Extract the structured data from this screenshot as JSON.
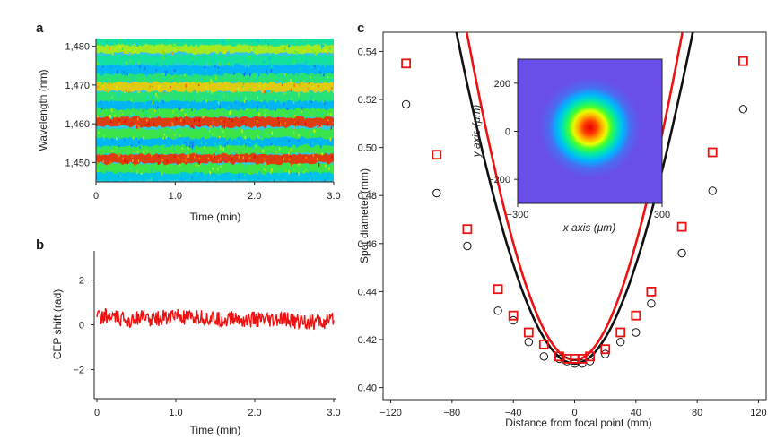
{
  "chart_data": [
    {
      "id": "a",
      "panel_letter": "a",
      "type": "heatmap",
      "xlabel": "Time (min)",
      "ylabel": "Wavelength (nm)",
      "xlim": [
        0,
        3.0
      ],
      "ylim": [
        1445,
        1482
      ],
      "xticks": [
        "0",
        "1.0",
        "2.0",
        "3.0"
      ],
      "xtick_values": [
        0,
        1.0,
        2.0,
        3.0
      ],
      "yticks": [
        "1,450",
        "1,460",
        "1,470",
        "1,480"
      ],
      "ytick_values": [
        1450,
        1460,
        1470,
        1480
      ],
      "bands": [
        {
          "wavelength": 1446.5,
          "intensity": 0.3
        },
        {
          "wavelength": 1448.5,
          "intensity": 0.55
        },
        {
          "wavelength": 1451.0,
          "intensity": 0.95
        },
        {
          "wavelength": 1453.5,
          "intensity": 0.55
        },
        {
          "wavelength": 1455.5,
          "intensity": 0.25
        },
        {
          "wavelength": 1457.5,
          "intensity": 0.55
        },
        {
          "wavelength": 1460.5,
          "intensity": 0.95
        },
        {
          "wavelength": 1463.0,
          "intensity": 0.55
        },
        {
          "wavelength": 1465.0,
          "intensity": 0.25
        },
        {
          "wavelength": 1467.0,
          "intensity": 0.5
        },
        {
          "wavelength": 1469.5,
          "intensity": 0.75
        },
        {
          "wavelength": 1472.0,
          "intensity": 0.5
        },
        {
          "wavelength": 1474.0,
          "intensity": 0.25
        },
        {
          "wavelength": 1476.5,
          "intensity": 0.45
        },
        {
          "wavelength": 1479.5,
          "intensity": 0.65
        },
        {
          "wavelength": 1481.5,
          "intensity": 0.45
        }
      ]
    },
    {
      "id": "b",
      "panel_letter": "b",
      "type": "line",
      "xlabel": "Time (min)",
      "ylabel": "CEP shift (rad)",
      "xlim": [
        0,
        3.0
      ],
      "ylim": [
        -3.3,
        3.3
      ],
      "xticks": [
        "0",
        "1.0",
        "2.0",
        "3.0"
      ],
      "xtick_values": [
        0,
        1.0,
        2.0,
        3.0
      ],
      "yticks": [
        "2",
        "0",
        "−2"
      ],
      "ytick_values": [
        2,
        0,
        -2
      ],
      "color": "#ee1111",
      "series": [
        {
          "name": "CEP shift",
          "x": [
            0,
            0.1,
            0.2,
            0.3,
            0.4,
            0.5,
            0.6,
            0.7,
            0.8,
            0.9,
            1.0,
            1.1,
            1.2,
            1.3,
            1.4,
            1.5,
            1.6,
            1.7,
            1.8,
            1.9,
            2.0,
            2.1,
            2.2,
            2.3,
            2.4,
            2.5,
            2.6,
            2.7,
            2.8,
            2.9,
            3.0
          ],
          "values": [
            0.35,
            0.4,
            0.3,
            0.25,
            0.2,
            0.35,
            0.3,
            0.25,
            0.3,
            0.35,
            0.4,
            0.3,
            0.25,
            0.35,
            0.3,
            0.25,
            0.2,
            0.3,
            0.25,
            0.2,
            0.25,
            0.2,
            0.15,
            0.2,
            0.25,
            0.15,
            0.2,
            0.1,
            0.15,
            0.1,
            0.2
          ],
          "noise_amplitude": 0.35
        }
      ]
    },
    {
      "id": "c",
      "panel_letter": "c",
      "type": "scatter",
      "xlabel": "Distance from focal point (mm)",
      "ylabel": "Spot diameter (mm)",
      "xlim": [
        -125,
        125
      ],
      "ylim": [
        0.395,
        0.548
      ],
      "xticks": [
        "−120",
        "−80",
        "−40",
        "0",
        "40",
        "80",
        "120"
      ],
      "xtick_values": [
        -120,
        -80,
        -40,
        0,
        40,
        80,
        120
      ],
      "yticks": [
        "0.40",
        "0.42",
        "0.44",
        "0.46",
        "0.48",
        "0.50",
        "0.52",
        "0.54"
      ],
      "ytick_values": [
        0.4,
        0.42,
        0.44,
        0.46,
        0.48,
        0.5,
        0.52,
        0.54
      ],
      "series": [
        {
          "name": "red",
          "color": "#ee1111",
          "marker": "square",
          "x": [
            -110,
            -90,
            -70,
            -50,
            -40,
            -30,
            -20,
            -10,
            -5,
            0,
            5,
            10,
            20,
            30,
            40,
            50,
            70,
            90,
            110
          ],
          "values": [
            0.535,
            0.497,
            0.466,
            0.441,
            0.43,
            0.423,
            0.418,
            0.413,
            0.412,
            0.412,
            0.412,
            0.413,
            0.416,
            0.423,
            0.43,
            0.44,
            0.467,
            0.498,
            0.536
          ],
          "fit": {
            "w0": 0.4115,
            "zr": 80.0,
            "range": [
              -118,
              118
            ]
          }
        },
        {
          "name": "black",
          "color": "#111111",
          "marker": "circle",
          "x": [
            -110,
            -90,
            -70,
            -50,
            -40,
            -30,
            -20,
            -10,
            -5,
            0,
            5,
            10,
            20,
            30,
            40,
            50,
            70,
            90,
            110
          ],
          "values": [
            0.518,
            0.481,
            0.459,
            0.432,
            0.428,
            0.419,
            0.413,
            0.412,
            0.411,
            0.41,
            0.41,
            0.411,
            0.414,
            0.419,
            0.423,
            0.435,
            0.456,
            0.482,
            0.516
          ],
          "fit": {
            "w0": 0.41,
            "zr": 87.0,
            "range": [
              -118,
              118
            ]
          }
        }
      ],
      "inset": {
        "type": "heatmap",
        "xlabel": "x axis (μm)",
        "ylabel": "y axis (μm)",
        "xlim": [
          -300,
          300
        ],
        "ylim": [
          -300,
          300
        ],
        "xticks": [
          "−300",
          "300"
        ],
        "xtick_values": [
          -300,
          300
        ],
        "yticks": [
          "200",
          "0",
          "−200"
        ],
        "ytick_values": [
          200,
          0,
          -200
        ],
        "spot_center": [
          0,
          15
        ],
        "spot_radius_um": 210
      }
    }
  ]
}
